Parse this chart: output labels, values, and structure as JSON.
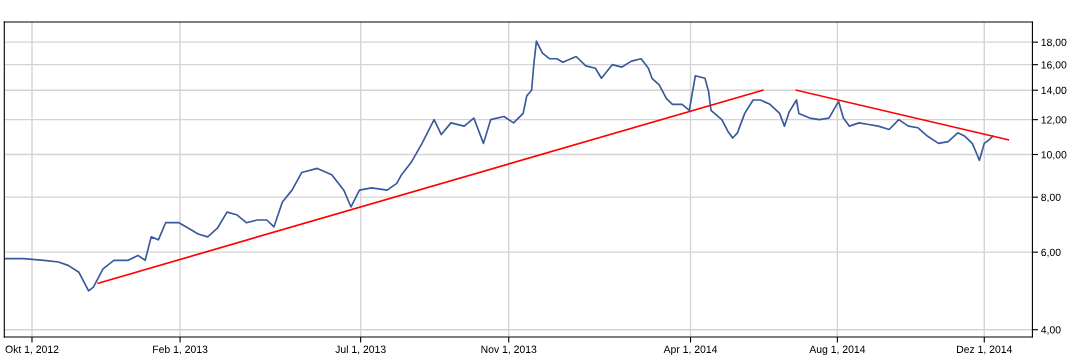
{
  "chart_data": {
    "type": "line",
    "log": "y",
    "grid": true,
    "marker": "none",
    "line_style": "solid",
    "xlim": [
      "2012-09-08",
      "2015-01-10"
    ],
    "xticks": [
      {
        "value": "2012-10-01",
        "label": "Okt 1, 2012"
      },
      {
        "value": "2013-02-01",
        "label": "Feb 1, 2013"
      },
      {
        "value": "2013-07-01",
        "label": "Jul 1, 2013"
      },
      {
        "value": "2013-11-01",
        "label": "Nov 1, 2013"
      },
      {
        "value": "2014-04-01",
        "label": "Apr 1, 2014"
      },
      {
        "value": "2014-08-01",
        "label": "Aug 1, 2014"
      },
      {
        "value": "2014-12-01",
        "label": "Dez 1, 2014"
      }
    ],
    "ylim": [
      3.85,
      20
    ],
    "yticks": [
      {
        "value": 4,
        "label": "4,00"
      },
      {
        "value": 6,
        "label": "6,00"
      },
      {
        "value": 8,
        "label": "8,00"
      },
      {
        "value": 10,
        "label": "10,00"
      },
      {
        "value": 12,
        "label": "12,00"
      },
      {
        "value": 14,
        "label": "14,00"
      },
      {
        "value": 16,
        "label": "16,00"
      },
      {
        "value": 18,
        "label": "18,00"
      }
    ],
    "series": [
      {
        "color": "#3a5a9c",
        "x": [
          "2012-09-08",
          "2012-09-24",
          "2012-10-11",
          "2012-10-23",
          "2012-10-31",
          "2012-11-09",
          "2012-11-17",
          "2012-11-21",
          "2012-11-29",
          "2012-12-08",
          "2012-12-20",
          "2012-12-28",
          "2013-01-03",
          "2013-01-08",
          "2013-01-14",
          "2013-01-20",
          "2013-01-31",
          "2013-02-08",
          "2013-02-16",
          "2013-02-24",
          "2013-03-04",
          "2013-03-12",
          "2013-03-20",
          "2013-03-28",
          "2013-04-06",
          "2013-04-14",
          "2013-04-20",
          "2013-04-27",
          "2013-05-05",
          "2013-05-13",
          "2013-05-26",
          "2013-06-07",
          "2013-06-17",
          "2013-06-23",
          "2013-06-30",
          "2013-07-10",
          "2013-07-23",
          "2013-07-31",
          "2013-08-04",
          "2013-08-12",
          "2013-08-21",
          "2013-08-31",
          "2013-09-06",
          "2013-09-14",
          "2013-09-25",
          "2013-10-03",
          "2013-10-11",
          "2013-10-17",
          "2013-10-28",
          "2013-11-05",
          "2013-11-13",
          "2013-11-16",
          "2013-11-20",
          "2013-11-22",
          "2013-11-24",
          "2013-11-29",
          "2013-12-05",
          "2013-12-11",
          "2013-12-16",
          "2013-12-27",
          "2014-01-04",
          "2014-01-12",
          "2014-01-17",
          "2014-01-26",
          "2014-02-03",
          "2014-02-11",
          "2014-02-19",
          "2014-02-25",
          "2014-02-28",
          "2014-03-06",
          "2014-03-12",
          "2014-03-17",
          "2014-03-25",
          "2014-03-31",
          "2014-04-05",
          "2014-04-13",
          "2014-04-16",
          "2014-04-18",
          "2014-04-27",
          "2014-05-02",
          "2014-05-06",
          "2014-05-10",
          "2014-05-16",
          "2014-05-23",
          "2014-05-29",
          "2014-06-06",
          "2014-06-14",
          "2014-06-18",
          "2014-06-22",
          "2014-06-28",
          "2014-06-30",
          "2014-07-09",
          "2014-07-17",
          "2014-07-25",
          "2014-08-02",
          "2014-08-06",
          "2014-08-11",
          "2014-08-19",
          "2014-08-27",
          "2014-09-04",
          "2014-09-13",
          "2014-09-21",
          "2014-09-29",
          "2014-10-07",
          "2014-10-15",
          "2014-10-24",
          "2014-11-01",
          "2014-11-09",
          "2014-11-15",
          "2014-11-21",
          "2014-11-25",
          "2014-11-27",
          "2014-12-01",
          "2014-12-05",
          "2014-12-08"
        ],
        "values": [
          5.8,
          5.8,
          5.75,
          5.7,
          5.6,
          5.4,
          4.9,
          5.0,
          5.5,
          5.75,
          5.75,
          5.9,
          5.75,
          6.5,
          6.4,
          7.0,
          7.0,
          6.8,
          6.6,
          6.5,
          6.8,
          7.4,
          7.3,
          7.0,
          7.1,
          7.1,
          6.85,
          7.8,
          8.3,
          9.1,
          9.3,
          9.0,
          8.3,
          7.6,
          8.3,
          8.4,
          8.3,
          8.6,
          9.0,
          9.6,
          10.6,
          12.0,
          11.1,
          11.8,
          11.6,
          12.1,
          10.6,
          12.0,
          12.2,
          11.8,
          12.4,
          13.6,
          14.0,
          16.2,
          18.1,
          17.0,
          16.5,
          16.5,
          16.2,
          16.7,
          15.9,
          15.7,
          14.9,
          16.0,
          15.8,
          16.3,
          16.5,
          15.7,
          14.9,
          14.4,
          13.4,
          13.0,
          13.0,
          12.6,
          15.1,
          14.9,
          13.9,
          12.6,
          12.0,
          11.3,
          10.9,
          11.2,
          12.4,
          13.3,
          13.3,
          13.0,
          12.4,
          11.6,
          12.5,
          13.3,
          12.4,
          12.1,
          12.0,
          12.1,
          13.2,
          12.1,
          11.6,
          11.8,
          11.7,
          11.6,
          11.4,
          12.0,
          11.6,
          11.5,
          11.0,
          10.6,
          10.7,
          11.2,
          11.0,
          10.6,
          10.0,
          9.7,
          10.6,
          10.8,
          11.0
        ]
      },
      {
        "color": "#ff0000",
        "x": [
          "2012-11-25",
          "2014-05-31"
        ],
        "values": [
          5.1,
          14.0
        ]
      },
      {
        "color": "#ff0000",
        "x": [
          "2014-06-28",
          "2014-12-21"
        ],
        "values": [
          14.0,
          10.8
        ]
      }
    ]
  }
}
